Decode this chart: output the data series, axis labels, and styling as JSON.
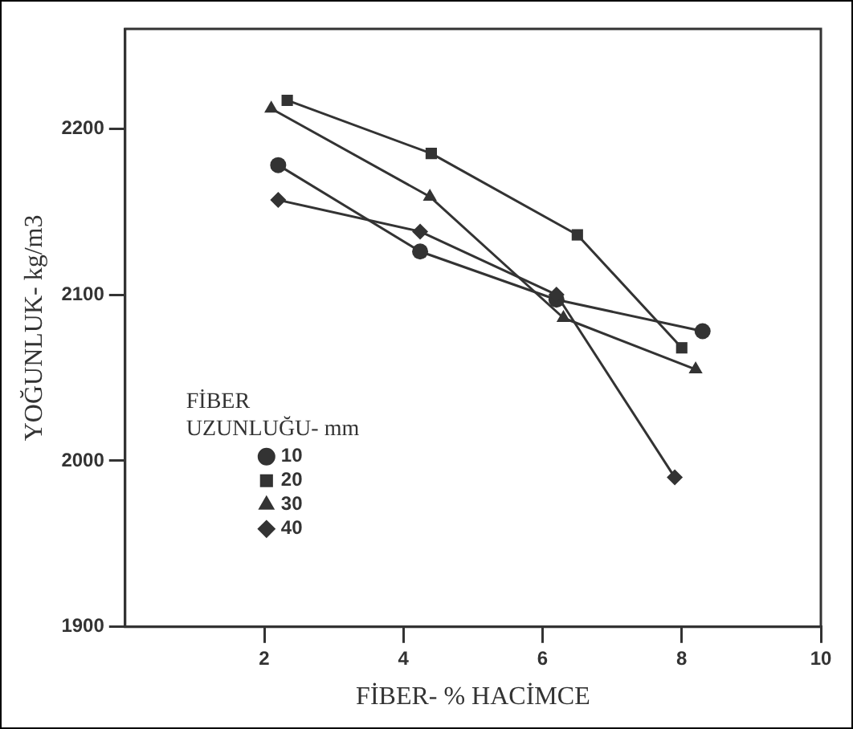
{
  "chart_data": {
    "type": "line",
    "xlabel": "FİBER- % HACİMCE",
    "ylabel": "YOĞUNLUK- kg/m3",
    "legend_title": "FİBER UZUNLUĞU- mm",
    "legend": "bottom left",
    "grid": false,
    "line_style": "solid",
    "xlim": [
      0,
      10
    ],
    "xticks": [
      2,
      4,
      6,
      8,
      10
    ],
    "ylim": [
      1900,
      2260
    ],
    "yticks": [
      1900,
      2000,
      2100,
      2200
    ],
    "series": [
      {
        "name": "10",
        "color": "#333333",
        "marker": "circle",
        "x": [
          2.2,
          4.24,
          6.2,
          8.3
        ],
        "values": [
          2178,
          2126,
          2097,
          2078
        ]
      },
      {
        "name": "20",
        "color": "#333333",
        "marker": "square",
        "x": [
          2.33,
          4.4,
          6.5,
          8.0
        ],
        "values": [
          2217,
          2185,
          2136,
          2068
        ]
      },
      {
        "name": "30",
        "color": "#333333",
        "marker": "triangle",
        "x": [
          2.1,
          4.38,
          6.3,
          8.2
        ],
        "values": [
          2212,
          2159,
          2086,
          2055
        ]
      },
      {
        "name": "40",
        "color": "#333333",
        "marker": "diamond",
        "x": [
          2.2,
          4.24,
          6.2,
          7.9
        ],
        "values": [
          2157,
          2138,
          2100,
          1990
        ]
      }
    ]
  }
}
